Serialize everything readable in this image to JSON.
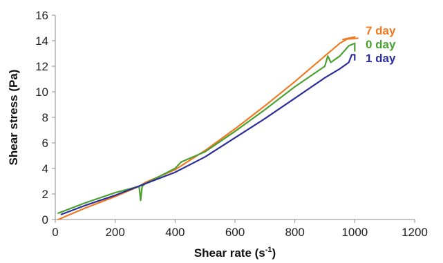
{
  "chart_data": {
    "type": "line",
    "xlabel": "Shear rate (s-1)",
    "xlabel_main": "Shear rate (s",
    "xlabel_sup": "-1",
    "xlabel_tail": ")",
    "ylabel": "Shear stress (Pa)",
    "xlim": [
      0,
      1200
    ],
    "ylim": [
      0,
      16
    ],
    "x_ticks": [
      0,
      200,
      400,
      600,
      800,
      1000,
      1200
    ],
    "y_ticks": [
      0,
      2,
      4,
      6,
      8,
      10,
      12,
      14,
      16
    ],
    "grid": false,
    "legend_placement": "labels at line ends, top-right",
    "series": [
      {
        "name": "7 day",
        "color": "#f07a22",
        "x": [
          10,
          100,
          200,
          280,
          300,
          400,
          500,
          600,
          700,
          800,
          900,
          950,
          980,
          1000,
          960,
          1010
        ],
        "y": [
          0.0,
          0.9,
          1.8,
          2.6,
          2.9,
          3.9,
          5.4,
          7.1,
          8.9,
          10.8,
          12.8,
          13.8,
          14.2,
          14.3,
          14.1,
          14.2
        ]
      },
      {
        "name": "0 day",
        "color": "#4aa031",
        "x": [
          10,
          100,
          200,
          280,
          285,
          290,
          300,
          400,
          420,
          500,
          600,
          700,
          800,
          900,
          910,
          920,
          950,
          980,
          1000,
          1000
        ],
        "y": [
          0.5,
          1.3,
          2.1,
          2.6,
          1.5,
          2.6,
          2.8,
          4.0,
          4.5,
          5.3,
          6.9,
          8.6,
          10.4,
          12.0,
          12.8,
          12.3,
          12.8,
          13.6,
          13.8,
          13.2
        ]
      },
      {
        "name": "1 day",
        "color": "#2b2e9a",
        "x": [
          20,
          100,
          200,
          300,
          400,
          500,
          600,
          700,
          800,
          900,
          950,
          980,
          990,
          1000,
          1000
        ],
        "y": [
          0.4,
          1.1,
          1.9,
          2.8,
          3.7,
          4.9,
          6.4,
          7.9,
          9.5,
          11.1,
          11.8,
          12.3,
          12.9,
          12.9,
          12.5
        ]
      }
    ],
    "legend": [
      {
        "label": "7 day",
        "color": "#f07a22"
      },
      {
        "label": "0 day",
        "color": "#4aa031"
      },
      {
        "label": "1 day",
        "color": "#2b2e9a"
      }
    ]
  }
}
